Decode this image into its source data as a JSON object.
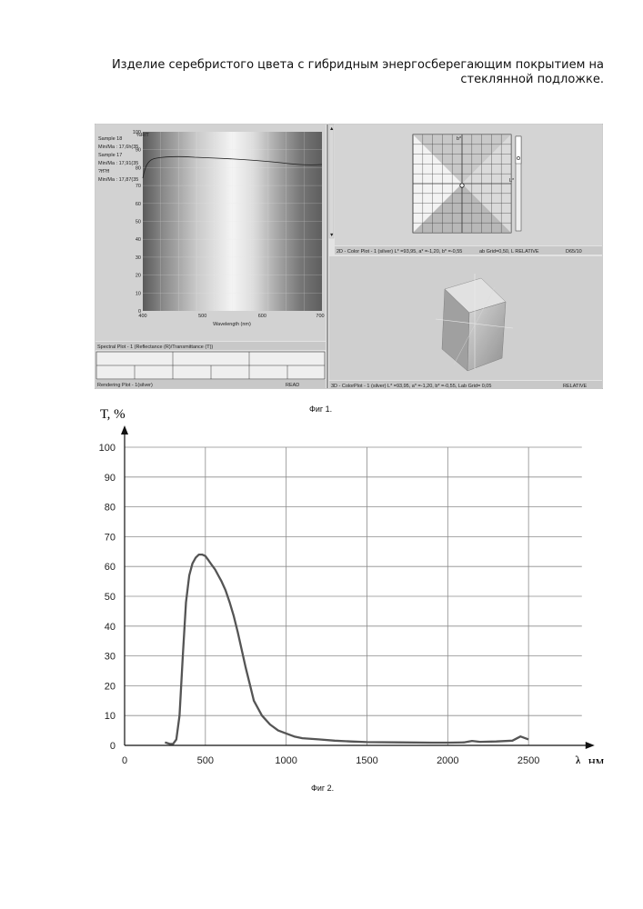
{
  "document": {
    "title": "Изделие серебристого цвета с гибридным энергосберегающим покрытием на стеклянной подложке."
  },
  "fig1": {
    "caption": "Фиг 1.",
    "spectral_panel": {
      "legend": [
        "Sample 18",
        "Min/Ma : 17,6h(35",
        "Sample 17",
        "Min/Ma : 17,91(35",
        "?ff?ff",
        "Min/Ma : 17,87(35"
      ],
      "unit_label": "%R/T",
      "y_ticks": [
        "100",
        "90",
        "80",
        "70",
        "60",
        "50",
        "40",
        "30",
        "20",
        "10",
        "0"
      ],
      "x_ticks": [
        "400",
        "500",
        "600",
        "700"
      ],
      "x_label": "Wavelength (nm)",
      "footer": "Spectral Plot - 1 (Reflectance (R)/Transmittance (T))"
    },
    "rendering_panel": {
      "footer_left": "Rendering Plot - 1(silver)",
      "footer_right": "READ"
    },
    "color2d_panel": {
      "axis_label": "b*",
      "side_label": "L*",
      "footer_left": "2D - Color Plot - 1 (silver) L* =93,95, a* =-1,20, b* =-0,55",
      "footer_mid": "ab Grid=0,50, L  RELATIVE",
      "footer_right": "D65/10"
    },
    "color3d_panel": {
      "footer_left": "3D - ColorPlot - 1 (silver) L* =93,95, a* =-1,20, b* =-0,55, Lab Grid= 0,05",
      "footer_right": "RELATIVE"
    }
  },
  "fig2": {
    "caption": "Фиг 2.",
    "y_axis_label": "Т, %",
    "x_axis_label": "λ, нм"
  },
  "chart_data": {
    "type": "line",
    "title": "",
    "xlabel": "λ, нм",
    "ylabel": "Т, %",
    "xlim": [
      0,
      2700
    ],
    "ylim": [
      0,
      100
    ],
    "x_ticks": [
      0,
      500,
      1000,
      1500,
      2000,
      2500
    ],
    "y_ticks": [
      0,
      10,
      20,
      30,
      40,
      50,
      60,
      70,
      80,
      90,
      100
    ],
    "grid": true,
    "series_color": "#555555",
    "series": [
      {
        "x": [
          250,
          280,
          300,
          320,
          340,
          360,
          380,
          400,
          420,
          440,
          460,
          480,
          500,
          520,
          540,
          560,
          580,
          600,
          625,
          650,
          675,
          700,
          725,
          750,
          775,
          800,
          850,
          900,
          950,
          1000,
          1050,
          1100,
          1200,
          1300,
          1400,
          1500,
          1700,
          1900,
          2000,
          2100,
          2150,
          2200,
          2300,
          2400,
          2450,
          2500
        ],
        "values": [
          1,
          0.5,
          0.5,
          2,
          10,
          30,
          48,
          57,
          61,
          63,
          64,
          64,
          63.5,
          62,
          60.5,
          59,
          57,
          55,
          52,
          48,
          43.5,
          38,
          32,
          26,
          20.5,
          15,
          10,
          7,
          5,
          4,
          3,
          2.4,
          2,
          1.6,
          1.3,
          1.1,
          1,
          0.9,
          0.9,
          1,
          1.5,
          1.2,
          1.3,
          1.6,
          3,
          2
        ]
      }
    ]
  }
}
